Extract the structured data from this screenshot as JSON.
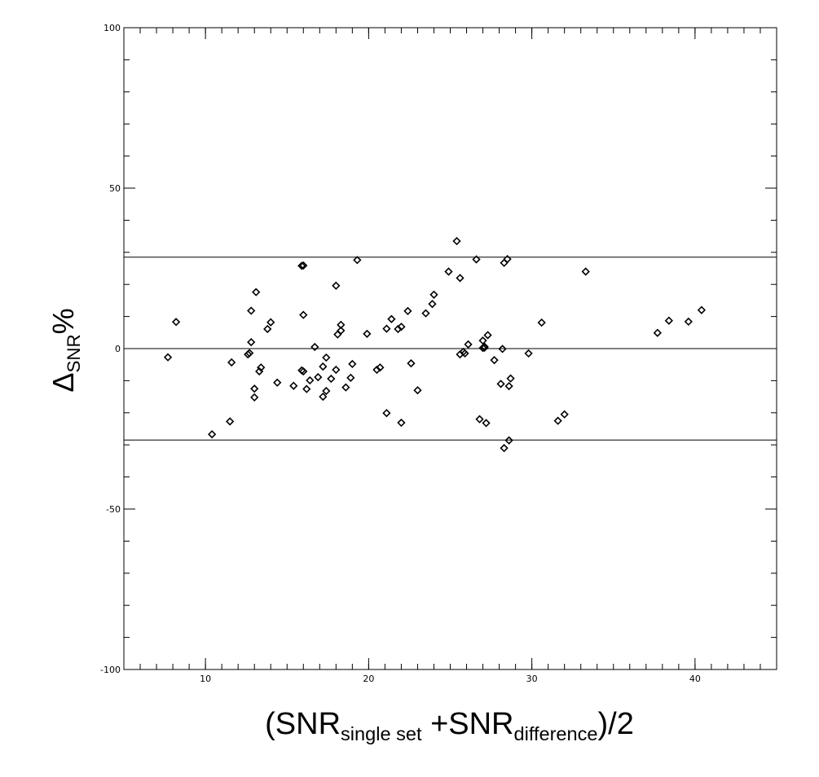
{
  "chart_data": {
    "type": "scatter",
    "marker": "diamond",
    "xlabel": {
      "prefix": "(SNR",
      "sub1": "single set",
      "middle": " +SNR",
      "sub2": "difference",
      "suffix": ")/2"
    },
    "ylabel": {
      "symbol": "Δ",
      "sub": "SNR",
      "suffix": "%"
    },
    "xlim": [
      5,
      45
    ],
    "ylim": [
      -100,
      100
    ],
    "x_major_ticks": [
      10,
      20,
      30,
      40
    ],
    "x_tick_labels": [
      "10",
      "20",
      "30",
      "40"
    ],
    "y_major_ticks": [
      -100,
      -50,
      0,
      50,
      100
    ],
    "y_tick_labels": [
      "-100",
      "-50",
      "0",
      "50",
      "100"
    ],
    "x_minor_step": 1,
    "y_minor_step": 10,
    "reference_lines": [
      28.5,
      0,
      -28.5
    ],
    "grid": false,
    "points": [
      {
        "x": 7.7,
        "y": -2.7
      },
      {
        "x": 8.2,
        "y": 8.3
      },
      {
        "x": 10.4,
        "y": -26.7
      },
      {
        "x": 11.5,
        "y": -22.7
      },
      {
        "x": 11.6,
        "y": -4.3
      },
      {
        "x": 12.6,
        "y": -1.8
      },
      {
        "x": 12.7,
        "y": -1.4
      },
      {
        "x": 12.8,
        "y": 11.8
      },
      {
        "x": 12.8,
        "y": 2.0
      },
      {
        "x": 13.0,
        "y": -12.5
      },
      {
        "x": 13.0,
        "y": -15.2
      },
      {
        "x": 13.1,
        "y": 17.6
      },
      {
        "x": 13.3,
        "y": -7.1
      },
      {
        "x": 13.4,
        "y": -5.9
      },
      {
        "x": 13.8,
        "y": 6.1
      },
      {
        "x": 14.0,
        "y": 8.2
      },
      {
        "x": 14.4,
        "y": -10.6
      },
      {
        "x": 15.4,
        "y": -11.6
      },
      {
        "x": 15.9,
        "y": 25.8
      },
      {
        "x": 16.0,
        "y": 25.9
      },
      {
        "x": 15.9,
        "y": -6.8
      },
      {
        "x": 16.0,
        "y": -7.1
      },
      {
        "x": 16.0,
        "y": 10.5
      },
      {
        "x": 16.2,
        "y": -12.6
      },
      {
        "x": 16.4,
        "y": -9.9
      },
      {
        "x": 16.7,
        "y": 0.5
      },
      {
        "x": 16.9,
        "y": -8.9
      },
      {
        "x": 17.2,
        "y": -5.6
      },
      {
        "x": 17.2,
        "y": -15.0
      },
      {
        "x": 17.4,
        "y": -13.2
      },
      {
        "x": 17.4,
        "y": -2.8
      },
      {
        "x": 17.7,
        "y": -9.4
      },
      {
        "x": 18.0,
        "y": -6.6
      },
      {
        "x": 18.0,
        "y": 19.6
      },
      {
        "x": 18.1,
        "y": 4.4
      },
      {
        "x": 18.3,
        "y": 5.6
      },
      {
        "x": 18.3,
        "y": 7.4
      },
      {
        "x": 18.6,
        "y": -12.1
      },
      {
        "x": 18.9,
        "y": -9.1
      },
      {
        "x": 19.0,
        "y": -4.8
      },
      {
        "x": 19.3,
        "y": 27.6
      },
      {
        "x": 19.9,
        "y": 4.6
      },
      {
        "x": 20.5,
        "y": -6.6
      },
      {
        "x": 20.7,
        "y": -5.9
      },
      {
        "x": 21.1,
        "y": -20.1
      },
      {
        "x": 21.1,
        "y": 6.2
      },
      {
        "x": 21.4,
        "y": 9.2
      },
      {
        "x": 21.8,
        "y": 6.1
      },
      {
        "x": 22.0,
        "y": 6.8
      },
      {
        "x": 22.0,
        "y": -23.1
      },
      {
        "x": 22.4,
        "y": 11.7
      },
      {
        "x": 22.6,
        "y": -4.6
      },
      {
        "x": 23.0,
        "y": -13.0
      },
      {
        "x": 23.5,
        "y": 11.0
      },
      {
        "x": 23.9,
        "y": 13.9
      },
      {
        "x": 24.0,
        "y": 16.8
      },
      {
        "x": 24.9,
        "y": 24.0
      },
      {
        "x": 25.4,
        "y": 33.5
      },
      {
        "x": 25.6,
        "y": 22.0
      },
      {
        "x": 25.6,
        "y": -1.8
      },
      {
        "x": 25.8,
        "y": -1.0
      },
      {
        "x": 25.9,
        "y": -1.5
      },
      {
        "x": 26.1,
        "y": 1.3
      },
      {
        "x": 26.6,
        "y": 27.8
      },
      {
        "x": 26.8,
        "y": -22.0
      },
      {
        "x": 27.0,
        "y": 0.2
      },
      {
        "x": 27.0,
        "y": 2.5
      },
      {
        "x": 27.1,
        "y": 0.6
      },
      {
        "x": 27.1,
        "y": 0.3
      },
      {
        "x": 27.2,
        "y": -23.2
      },
      {
        "x": 27.3,
        "y": 4.2
      },
      {
        "x": 27.7,
        "y": -3.6
      },
      {
        "x": 28.1,
        "y": -11.0
      },
      {
        "x": 28.2,
        "y": -0.1
      },
      {
        "x": 28.3,
        "y": 26.7
      },
      {
        "x": 28.3,
        "y": -31.0
      },
      {
        "x": 28.5,
        "y": 27.9
      },
      {
        "x": 28.6,
        "y": -28.6
      },
      {
        "x": 28.6,
        "y": -11.7
      },
      {
        "x": 28.7,
        "y": -9.3
      },
      {
        "x": 29.8,
        "y": -1.5
      },
      {
        "x": 30.6,
        "y": 8.1
      },
      {
        "x": 31.6,
        "y": -22.5
      },
      {
        "x": 32.0,
        "y": -20.5
      },
      {
        "x": 33.3,
        "y": 24.0
      },
      {
        "x": 37.7,
        "y": 4.9
      },
      {
        "x": 38.4,
        "y": 8.7
      },
      {
        "x": 39.6,
        "y": 8.4
      },
      {
        "x": 40.4,
        "y": 12.0
      }
    ]
  }
}
